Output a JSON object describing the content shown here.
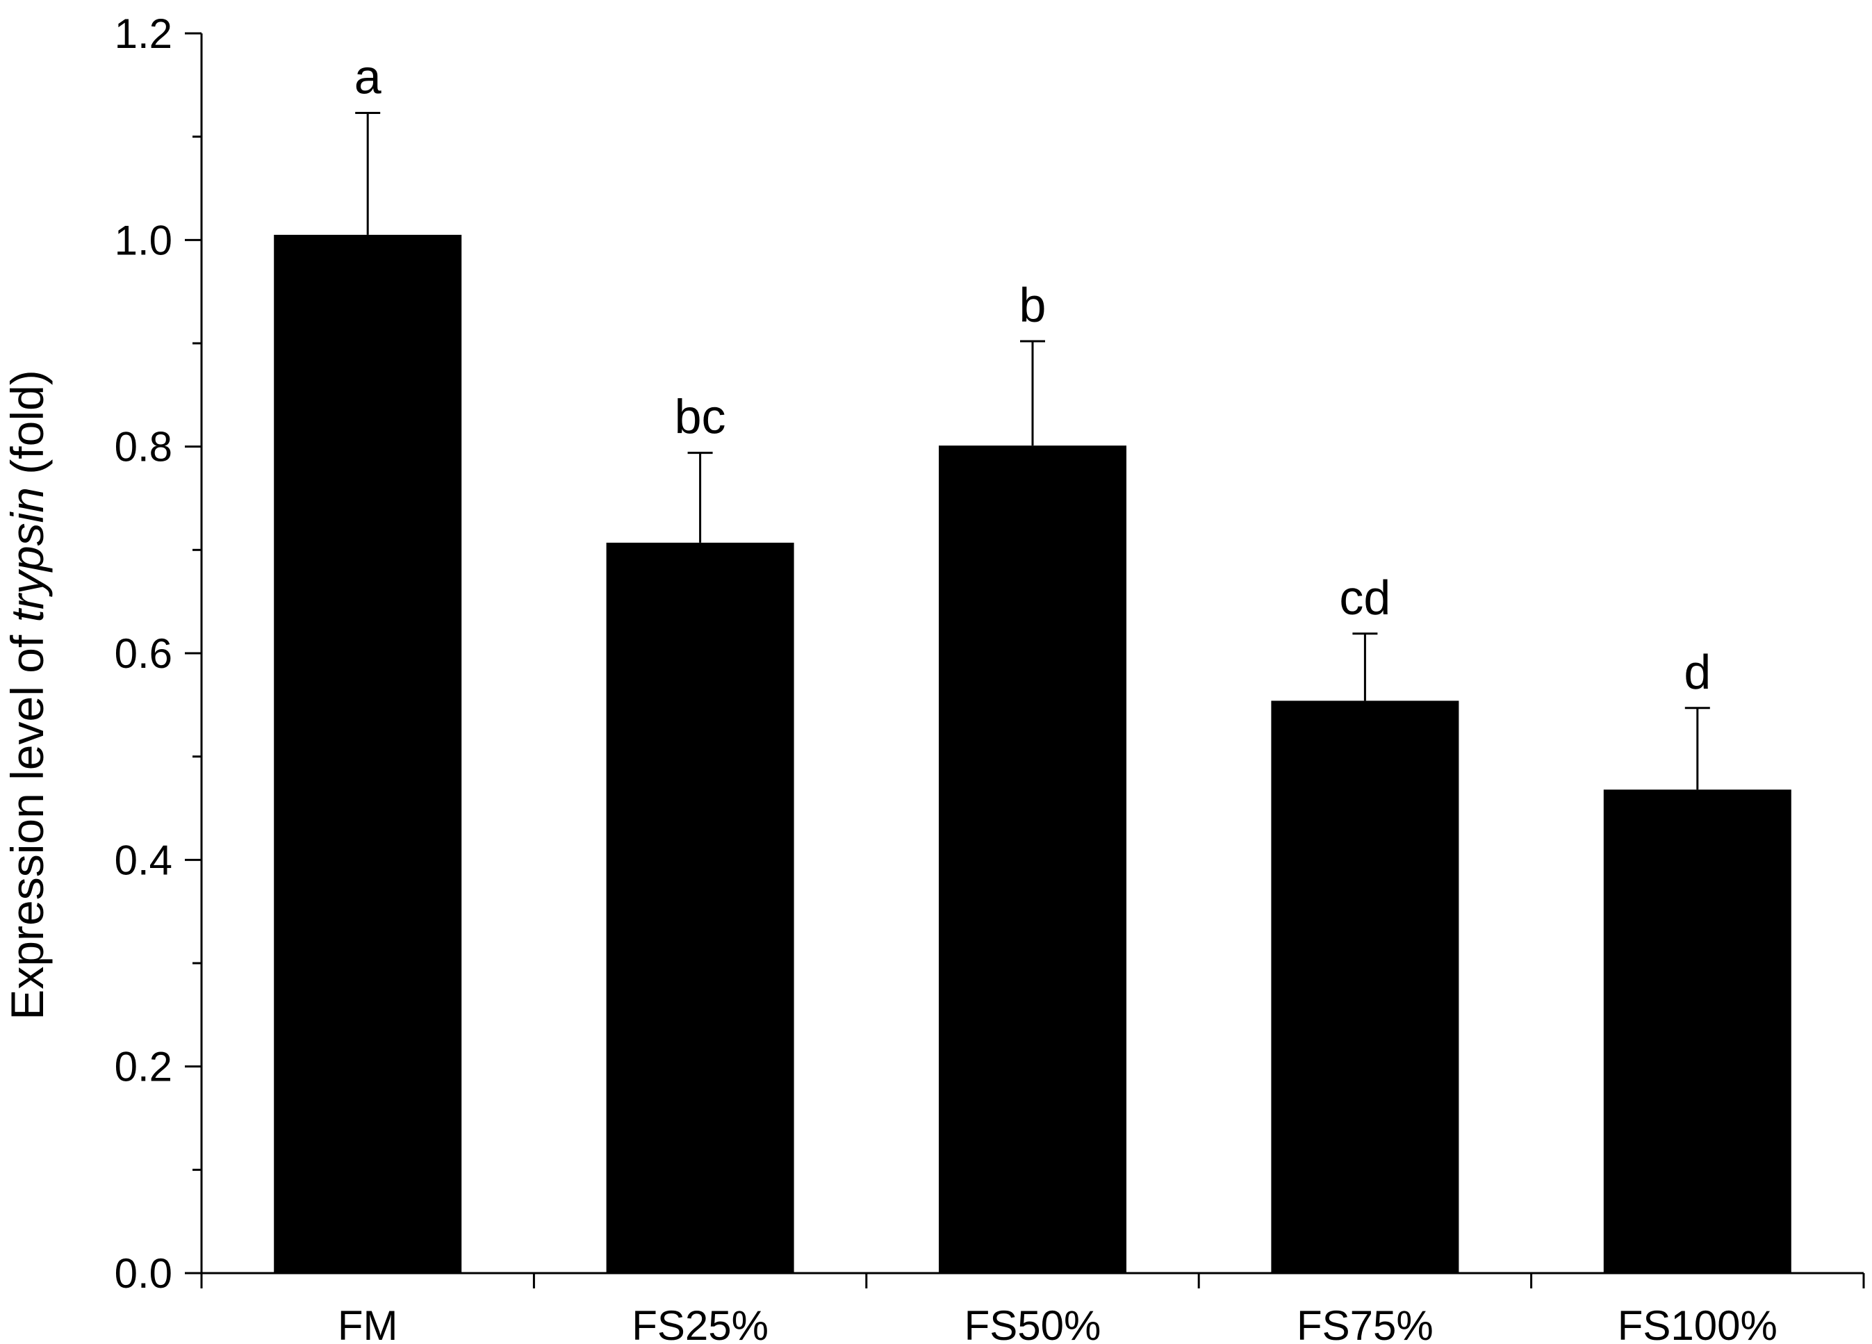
{
  "chart_data": {
    "type": "bar",
    "categories": [
      "FM",
      "FS25%",
      "FS50%",
      "FS75%",
      "FS100%"
    ],
    "values": [
      1.005,
      0.707,
      0.801,
      0.554,
      0.468
    ],
    "error_upper": [
      1.123,
      0.794,
      0.902,
      0.619,
      0.547
    ],
    "significance_labels": [
      "a",
      "bc",
      "b",
      "cd",
      "d"
    ],
    "title": "",
    "xlabel": "",
    "ylabel": {
      "prefix": "Expression level of ",
      "italic": "trypsin",
      "suffix": " (fold)"
    },
    "ylim": [
      0,
      1.2
    ],
    "y_ticks": [
      0.0,
      0.2,
      0.4,
      0.6,
      0.8,
      1.0,
      1.2
    ],
    "y_tick_labels": [
      "0.0",
      "0.2",
      "0.4",
      "0.6",
      "0.8",
      "1.0",
      "1.2"
    ],
    "grid": false,
    "legend": "none",
    "bar_color": "#000000",
    "axis_color": "#000000"
  }
}
